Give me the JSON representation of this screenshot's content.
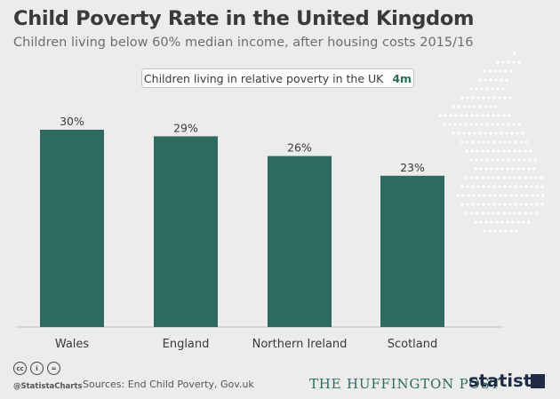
{
  "title": "Child Poverty Rate in the United Kingdom",
  "subtitle": "Children living below 60% median income, after housing costs 2015/16",
  "callout": {
    "label": "Children living in relative poverty in the UK",
    "value": "4m"
  },
  "chart_data": {
    "type": "bar",
    "categories": [
      "Wales",
      "England",
      "Northern Ireland",
      "Scotland"
    ],
    "values": [
      30,
      29,
      26,
      23
    ],
    "value_labels": [
      "30%",
      "29%",
      "26%",
      "23%"
    ],
    "ylim": [
      0,
      30
    ],
    "grid": false,
    "bar_color": "#2e6b5e"
  },
  "colors": {
    "bar": "#2e6b5e",
    "accent": "#2a6d5f",
    "map_dots": "#ffffff"
  },
  "footer": {
    "license_icons": [
      "cc-icon",
      "attribution-icon",
      "no-derivatives-icon"
    ],
    "handle": "@StatistaCharts",
    "sources": "Sources: End Child Poverty, Gov.uk",
    "partner": "THE HUFFINGTON POST",
    "brand": "statista"
  }
}
